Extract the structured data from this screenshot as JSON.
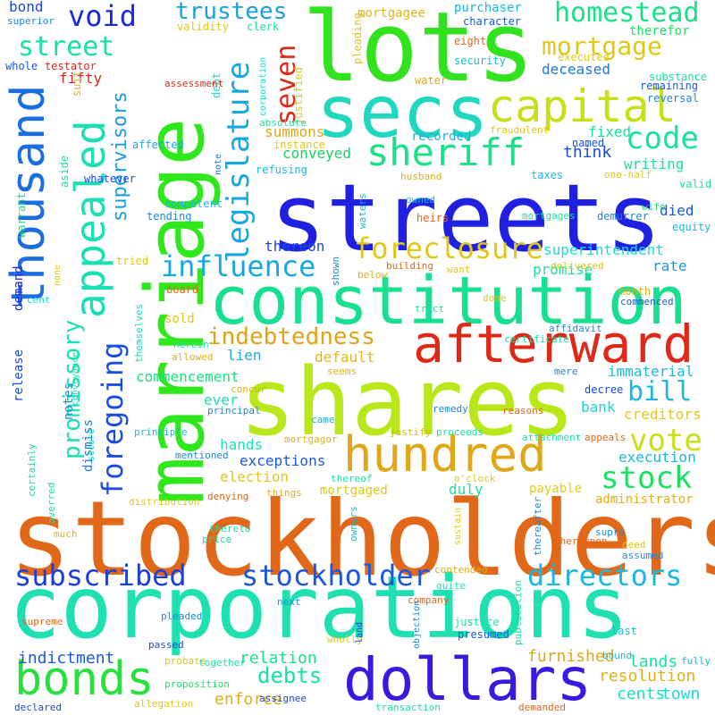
{
  "words": [
    {
      "text": "stockholders",
      "color": "#e06818"
    },
    {
      "text": "corporations",
      "color": "#1ee0b0"
    },
    {
      "text": "streets",
      "color": "#2020e0"
    },
    {
      "text": "shares",
      "color": "#b8e81a"
    },
    {
      "text": "constitution",
      "color": "#18e090"
    },
    {
      "text": "lots",
      "color": "#32e21e"
    },
    {
      "text": "marriage",
      "color": "#2ee81c"
    },
    {
      "text": "secs",
      "color": "#20d8c0"
    },
    {
      "text": "dollars",
      "color": "#3a1ae0"
    },
    {
      "text": "afterward",
      "color": "#e02818"
    },
    {
      "text": "hundred",
      "color": "#e0a818"
    },
    {
      "text": "thousand",
      "color": "#1a6ee0"
    },
    {
      "text": "appealed",
      "color": "#1ae0b4"
    },
    {
      "text": "capital",
      "color": "#c8e01a"
    },
    {
      "text": "bonds",
      "color": "#28e040"
    },
    {
      "text": "sheriff",
      "color": "#1ae088"
    },
    {
      "text": "foreclosure",
      "color": "#e0c818"
    },
    {
      "text": "influence",
      "color": "#1aa8e0"
    },
    {
      "text": "mortgage",
      "color": "#e0c818"
    },
    {
      "text": "homestead",
      "color": "#1ae088"
    },
    {
      "text": "legislature",
      "color": "#18a8e0"
    },
    {
      "text": "foregoing",
      "color": "#1a4ee0"
    },
    {
      "text": "subscribed",
      "color": "#1a3ee0"
    },
    {
      "text": "stockholder",
      "color": "#1a58e0"
    },
    {
      "text": "directors",
      "color": "#1ab8e0"
    },
    {
      "text": "stock",
      "color": "#1ae064"
    },
    {
      "text": "vote",
      "color": "#c8e018"
    },
    {
      "text": "code",
      "color": "#1ae0a0"
    },
    {
      "text": "street",
      "color": "#1ae0a8"
    },
    {
      "text": "void",
      "color": "#1a28e0"
    },
    {
      "text": "trustees",
      "color": "#1aa0e0"
    },
    {
      "text": "seven",
      "color": "#e02818"
    },
    {
      "text": "indebtedness",
      "color": "#e0a418"
    },
    {
      "text": "promissory",
      "color": "#1ae0b4"
    },
    {
      "text": "supervisors",
      "color": "#1a9ce0"
    },
    {
      "text": "bill",
      "color": "#1ab8e0"
    },
    {
      "text": "debts",
      "color": "#1ae0a8"
    },
    {
      "text": "relation",
      "color": "#1ae088"
    },
    {
      "text": "indictment",
      "color": "#1a58e0"
    },
    {
      "text": "enforce",
      "color": "#e0b018"
    },
    {
      "text": "resolution",
      "color": "#e0b018"
    },
    {
      "text": "town",
      "color": "#1ad8e0"
    },
    {
      "text": "lands",
      "color": "#1ae0a4"
    },
    {
      "text": "cents",
      "color": "#1ae0b8"
    },
    {
      "text": "furnished",
      "color": "#e0a818"
    },
    {
      "text": "summons",
      "color": "#e0a818"
    },
    {
      "text": "conveyed",
      "color": "#1ad060"
    },
    {
      "text": "think",
      "color": "#1a4ee0"
    },
    {
      "text": "writing",
      "color": "#1ae0a0"
    },
    {
      "text": "fixed",
      "color": "#1ae0a0"
    },
    {
      "text": "recorded",
      "color": "#1ab0e0"
    },
    {
      "text": "died",
      "color": "#1a58e0"
    },
    {
      "text": "thereon",
      "color": "#1a48e0"
    },
    {
      "text": "superintendent",
      "color": "#1ad8e0"
    },
    {
      "text": "promise",
      "color": "#1ae0a8"
    },
    {
      "text": "rate",
      "color": "#1a98e0"
    },
    {
      "text": "sold",
      "color": "#e0c818"
    },
    {
      "text": "lien",
      "color": "#1ab0e0"
    },
    {
      "text": "default",
      "color": "#e0b818"
    },
    {
      "text": "commencement",
      "color": "#1ae080"
    },
    {
      "text": "hands",
      "color": "#1ae0c0"
    },
    {
      "text": "election",
      "color": "#e0c818"
    },
    {
      "text": "exceptions",
      "color": "#1a58e0"
    },
    {
      "text": "mortgaged",
      "color": "#e0c818"
    },
    {
      "text": "duly",
      "color": "#1ae0a0"
    },
    {
      "text": "payable",
      "color": "#e0d018"
    },
    {
      "text": "execution",
      "color": "#1ab8e0"
    },
    {
      "text": "administrator",
      "color": "#e0b018"
    },
    {
      "text": "creditors",
      "color": "#e0c818"
    },
    {
      "text": "immaterial",
      "color": "#1ab8e0"
    },
    {
      "text": "bank",
      "color": "#1ad8e0"
    },
    {
      "text": "ever",
      "color": "#1ae0b0"
    },
    {
      "text": "notes",
      "color": "#1a88e0"
    },
    {
      "text": "dismiss",
      "color": "#1a78e0"
    },
    {
      "text": "release",
      "color": "#1a48e0"
    },
    {
      "text": "demand",
      "color": "#1a28e0"
    },
    {
      "text": "fifty",
      "color": "#e02818"
    },
    {
      "text": "bond",
      "color": "#1a48e0"
    },
    {
      "text": "deceased",
      "color": "#1a78e0"
    },
    {
      "text": "purchaser",
      "color": "#1ab8e0"
    },
    {
      "text": "mortgagee",
      "color": "#e0b418"
    },
    {
      "text": "therefor",
      "color": "#1ae068"
    },
    {
      "text": "eight",
      "color": "#e06818"
    },
    {
      "text": "justified",
      "color": "#e0c818"
    },
    {
      "text": "debt",
      "color": "#1ae0c8"
    },
    {
      "text": "validity",
      "color": "#e0c818"
    },
    {
      "text": "clerk",
      "color": "#1ae0a0"
    },
    {
      "text": "superior",
      "color": "#1a88e0"
    },
    {
      "text": "whole",
      "color": "#1a58e0"
    },
    {
      "text": "testator",
      "color": "#e02818"
    },
    {
      "text": "whatever",
      "color": "#1a48e0"
    },
    {
      "text": "warrant",
      "color": "#1ae080"
    },
    {
      "text": "aside",
      "color": "#1ae0a8"
    },
    {
      "text": "suit",
      "color": "#e0b018"
    },
    {
      "text": "assessment",
      "color": "#e02818"
    },
    {
      "text": "affected",
      "color": "#1aa8e0"
    },
    {
      "text": "competent",
      "color": "#1ab8e0"
    },
    {
      "text": "tending",
      "color": "#1a88e0"
    },
    {
      "text": "refusing",
      "color": "#1ab8e0"
    },
    {
      "text": "instance",
      "color": "#e0c818"
    },
    {
      "text": "absolute",
      "color": "#1ae0a0"
    },
    {
      "text": "corporation",
      "color": "#1ae0b8"
    },
    {
      "text": "pleading",
      "color": "#e0c818"
    },
    {
      "text": "water",
      "color": "#e0a818"
    },
    {
      "text": "security",
      "color": "#1ab8e0"
    },
    {
      "text": "character",
      "color": "#1a58e0"
    },
    {
      "text": "remaining",
      "color": "#1a58e0"
    },
    {
      "text": "substance",
      "color": "#1ae0a0"
    },
    {
      "text": "reversal",
      "color": "#1a88e0"
    },
    {
      "text": "fraudulent",
      "color": "#e0c818"
    },
    {
      "text": "named",
      "color": "#1a58e0"
    },
    {
      "text": "one-half",
      "color": "#e0c818"
    },
    {
      "text": "valid",
      "color": "#1ae0a0"
    },
    {
      "text": "taxes",
      "color": "#1ab8e0"
    },
    {
      "text": "husband",
      "color": "#e0b018"
    },
    {
      "text": "owned",
      "color": "#1ab8e0"
    },
    {
      "text": "heirs",
      "color": "#e06818"
    },
    {
      "text": "waters",
      "color": "#1ab8e0"
    },
    {
      "text": "mortgages",
      "color": "#1ae0a8"
    },
    {
      "text": "wife",
      "color": "#1ae068"
    },
    {
      "text": "demurrer",
      "color": "#1a88e0"
    },
    {
      "text": "equity",
      "color": "#1ab8e0"
    },
    {
      "text": "executed",
      "color": "#e0c818"
    },
    {
      "text": "note",
      "color": "#1a78e0"
    },
    {
      "text": "tried",
      "color": "#e0c818"
    },
    {
      "text": "none",
      "color": "#e0c818"
    },
    {
      "text": "cent",
      "color": "#1ae0c8"
    },
    {
      "text": "board",
      "color": "#e06818"
    },
    {
      "text": "building",
      "color": "#e06818"
    },
    {
      "text": "want",
      "color": "#e0c818"
    },
    {
      "text": "delivered",
      "color": "#e0c818"
    },
    {
      "text": "month",
      "color": "#e0b018"
    },
    {
      "text": "commenced",
      "color": "#1a58e0"
    },
    {
      "text": "shown",
      "color": "#1a88e0"
    },
    {
      "text": "below",
      "color": "#e0b018"
    },
    {
      "text": "tract",
      "color": "#1ae0a0"
    },
    {
      "text": "done",
      "color": "#e0c818"
    },
    {
      "text": "themselves",
      "color": "#1ae0b0"
    },
    {
      "text": "herein",
      "color": "#1ae0b0"
    },
    {
      "text": "allowed",
      "color": "#e0b018"
    },
    {
      "text": "certificate",
      "color": "#1ae0a0"
    },
    {
      "text": "affidavit",
      "color": "#1a88e0"
    },
    {
      "text": "conveyance",
      "color": "#1ae0a8"
    },
    {
      "text": "seems",
      "color": "#e0b018"
    },
    {
      "text": "concur",
      "color": "#e0b018"
    },
    {
      "text": "mere",
      "color": "#1a88e0"
    },
    {
      "text": "decree",
      "color": "#1a48e0"
    },
    {
      "text": "principal",
      "color": "#1a88e0"
    },
    {
      "text": "came",
      "color": "#1ab0e0"
    },
    {
      "text": "reasons",
      "color": "#e06818"
    },
    {
      "text": "remedy",
      "color": "#1a88e0"
    },
    {
      "text": "principle",
      "color": "#1ab8e0"
    },
    {
      "text": "secure",
      "color": "#1ae0b0"
    },
    {
      "text": "certainly",
      "color": "#1ae0a0"
    },
    {
      "text": "justify",
      "color": "#e0b018"
    },
    {
      "text": "proceeds",
      "color": "#1ae0a0"
    },
    {
      "text": "mortgagor",
      "color": "#e0b018"
    },
    {
      "text": "attachment",
      "color": "#1ae0a8"
    },
    {
      "text": "appeals",
      "color": "#e06818"
    },
    {
      "text": "mentioned",
      "color": "#1a88e0"
    },
    {
      "text": "averred",
      "color": "#1ae0a0"
    },
    {
      "text": "thereof",
      "color": "#1ae0a0"
    },
    {
      "text": "o'clock",
      "color": "#e0c818"
    },
    {
      "text": "things",
      "color": "#e0b018"
    },
    {
      "text": "denying",
      "color": "#e06818"
    },
    {
      "text": "distribution",
      "color": "#e0c818"
    },
    {
      "text": "owners",
      "color": "#1ab8e0"
    },
    {
      "text": "sustain",
      "color": "#e0c818"
    },
    {
      "text": "thereafter",
      "color": "#1a88e0"
    },
    {
      "text": "thereto",
      "color": "#1ae0a0"
    },
    {
      "text": "price",
      "color": "#1ae0a8"
    },
    {
      "text": "supra",
      "color": "#1a88e0"
    },
    {
      "text": "deed",
      "color": "#e0c818"
    },
    {
      "text": "thereupon",
      "color": "#e06818"
    },
    {
      "text": "assumed",
      "color": "#1a88e0"
    },
    {
      "text": "much",
      "color": "#e0b018"
    },
    {
      "text": "contended",
      "color": "#e0b018"
    },
    {
      "text": "next",
      "color": "#1a88e0"
    },
    {
      "text": "company",
      "color": "#e06818"
    },
    {
      "text": "objection",
      "color": "#1a88e0"
    },
    {
      "text": "quite",
      "color": "#1ae0c0"
    },
    {
      "text": "supreme",
      "color": "#e06818"
    },
    {
      "text": "pleaded",
      "color": "#1a88e0"
    },
    {
      "text": "justice",
      "color": "#1ae0a8"
    },
    {
      "text": "presumed",
      "color": "#1a58e0"
    },
    {
      "text": "publication",
      "color": "#1ae0a0"
    },
    {
      "text": "last",
      "color": "#1ab8e0"
    },
    {
      "text": "bound",
      "color": "#1ab8e0"
    },
    {
      "text": "fully",
      "color": "#1ab8e0"
    },
    {
      "text": "wholly",
      "color": "#e0c818"
    },
    {
      "text": "land",
      "color": "#1a48e0"
    },
    {
      "text": "passed",
      "color": "#1a48e0"
    },
    {
      "text": "probate",
      "color": "#e0c818"
    },
    {
      "text": "together",
      "color": "#1ae0a8"
    },
    {
      "text": "proposition",
      "color": "#1ae068"
    },
    {
      "text": "assignee",
      "color": "#1a48e0"
    },
    {
      "text": "allegation",
      "color": "#e0c818"
    },
    {
      "text": "declared",
      "color": "#1a48e0"
    },
    {
      "text": "transaction",
      "color": "#1ae0a8"
    },
    {
      "text": "demanded",
      "color": "#e06818"
    }
  ]
}
